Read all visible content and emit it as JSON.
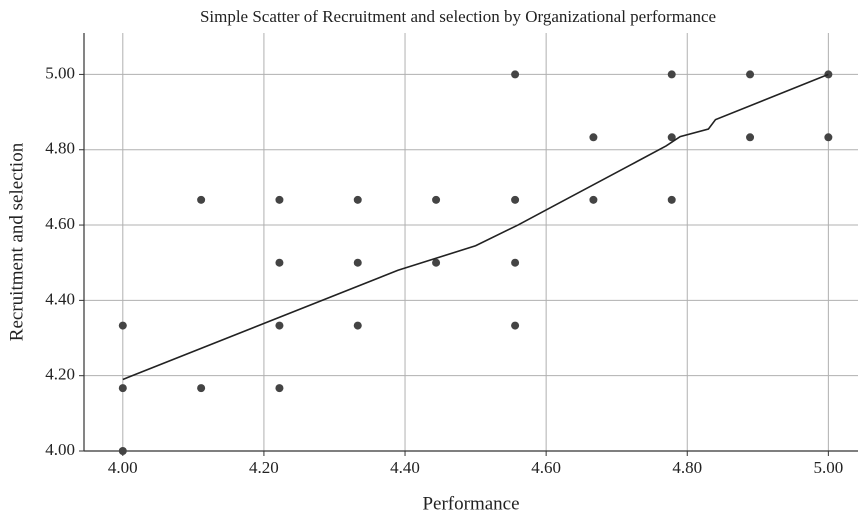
{
  "chart_data": {
    "type": "scatter",
    "title": "Simple Scatter of Recruitment and selection by Organizational performance",
    "x_label": "Performance",
    "y_label": "Recruitment and selection",
    "x": [
      4.0,
      4.0,
      4.0,
      4.111,
      4.111,
      4.222,
      4.222,
      4.222,
      4.222,
      4.333,
      4.333,
      4.333,
      4.444,
      4.444,
      4.556,
      4.556,
      4.556,
      4.556,
      4.667,
      4.667,
      4.778,
      4.778,
      4.778,
      4.889,
      4.889,
      5.0,
      5.0
    ],
    "values": [
      4.0,
      4.167,
      4.333,
      4.667,
      4.167,
      4.667,
      4.5,
      4.333,
      4.167,
      4.667,
      4.5,
      4.333,
      4.667,
      4.5,
      5.0,
      4.667,
      4.5,
      4.333,
      4.833,
      4.667,
      5.0,
      4.833,
      4.667,
      5.0,
      4.833,
      5.0,
      4.833
    ],
    "color": "#444444",
    "fit_line": {
      "x": [
        4.0,
        4.39,
        4.5,
        4.56,
        4.61,
        4.72,
        4.77,
        4.79,
        4.83,
        4.84,
        5.0
      ],
      "values": [
        4.19,
        4.48,
        4.545,
        4.6,
        4.65,
        4.76,
        4.81,
        4.835,
        4.855,
        4.88,
        5.0
      ],
      "color": "#222222"
    },
    "xlim": [
      3.945,
      5.042
    ],
    "ylim": [
      4.0,
      5.11
    ],
    "xticks": [
      {
        "value": 4.0,
        "label": "4.00"
      },
      {
        "value": 4.2,
        "label": "4.20"
      },
      {
        "value": 4.4,
        "label": "4.40"
      },
      {
        "value": 4.6,
        "label": "4.60"
      },
      {
        "value": 4.8,
        "label": "4.80"
      },
      {
        "value": 5.0,
        "label": "5.00"
      }
    ],
    "yticks": [
      {
        "value": 4.0,
        "label": "4.00"
      },
      {
        "value": 4.2,
        "label": "4.20"
      },
      {
        "value": 4.4,
        "label": "4.40"
      },
      {
        "value": 4.6,
        "label": "4.60"
      },
      {
        "value": 4.8,
        "label": "4.80"
      },
      {
        "value": 5.0,
        "label": "5.00"
      }
    ],
    "grid": true
  }
}
